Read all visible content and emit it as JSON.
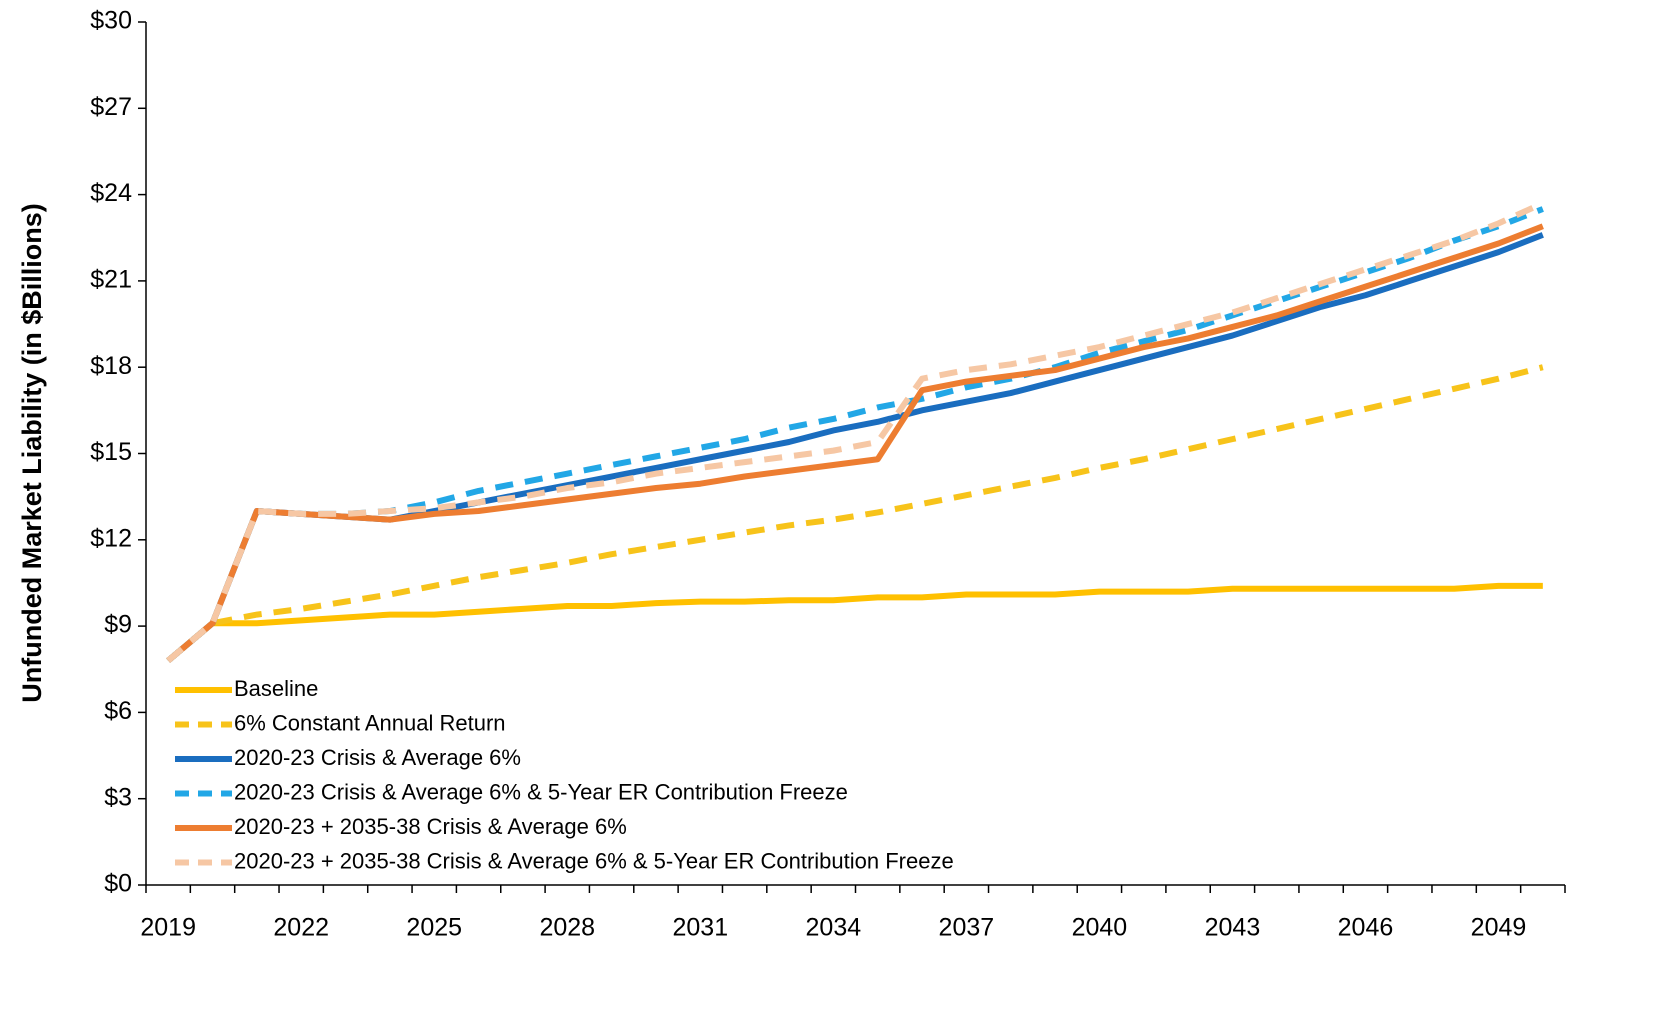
{
  "chart_data": {
    "type": "line",
    "y_label": "Unfunded Market Liability (in $Billions)",
    "x": [
      2019,
      2020,
      2021,
      2022,
      2023,
      2024,
      2025,
      2026,
      2027,
      2028,
      2029,
      2030,
      2031,
      2032,
      2033,
      2034,
      2035,
      2036,
      2037,
      2038,
      2039,
      2040,
      2041,
      2042,
      2043,
      2044,
      2045,
      2046,
      2047,
      2048,
      2049,
      2050
    ],
    "xlim": [
      2018.5,
      2050.5
    ],
    "xticks": [
      2019,
      2022,
      2025,
      2028,
      2031,
      2034,
      2037,
      2040,
      2043,
      2046,
      2049
    ],
    "ylim": [
      0,
      30
    ],
    "yticks": [
      {
        "value": 0,
        "label": "$0"
      },
      {
        "value": 3,
        "label": "$3"
      },
      {
        "value": 6,
        "label": "$6"
      },
      {
        "value": 9,
        "label": "$9"
      },
      {
        "value": 12,
        "label": "$12"
      },
      {
        "value": 15,
        "label": "$15"
      },
      {
        "value": 18,
        "label": "$18"
      },
      {
        "value": 21,
        "label": "$21"
      },
      {
        "value": 24,
        "label": "$24"
      },
      {
        "value": 27,
        "label": "$27"
      },
      {
        "value": 30,
        "label": "$30"
      }
    ],
    "series": [
      {
        "name": "Baseline",
        "color": "#ffc000",
        "dashed": false,
        "values": [
          7.8,
          9.1,
          9.1,
          9.2,
          9.3,
          9.4,
          9.4,
          9.5,
          9.6,
          9.7,
          9.7,
          9.8,
          9.85,
          9.85,
          9.9,
          9.9,
          10.0,
          10.0,
          10.1,
          10.1,
          10.1,
          10.2,
          10.2,
          10.2,
          10.3,
          10.3,
          10.3,
          10.3,
          10.3,
          10.3,
          10.4,
          10.4
        ]
      },
      {
        "name": "6% Constant Annual Return",
        "color": "#f7c31a",
        "dashed": true,
        "values": [
          7.8,
          9.1,
          9.4,
          9.6,
          9.85,
          10.1,
          10.4,
          10.7,
          10.95,
          11.2,
          11.5,
          11.75,
          12.0,
          12.25,
          12.5,
          12.7,
          12.95,
          13.25,
          13.55,
          13.85,
          14.15,
          14.5,
          14.8,
          15.15,
          15.5,
          15.85,
          16.2,
          16.55,
          16.9,
          17.25,
          17.6,
          18.0
        ]
      },
      {
        "name": "2020-23 Crisis & Average 6%",
        "color": "#1a6dbf",
        "dashed": false,
        "values": [
          7.8,
          9.1,
          13.0,
          12.9,
          12.8,
          12.7,
          13.0,
          13.3,
          13.6,
          13.9,
          14.2,
          14.5,
          14.8,
          15.1,
          15.4,
          15.8,
          16.1,
          16.5,
          16.8,
          17.1,
          17.5,
          17.9,
          18.3,
          18.7,
          19.1,
          19.6,
          20.1,
          20.5,
          21.0,
          21.5,
          22.0,
          22.6
        ]
      },
      {
        "name": "2020-23 Crisis & Average 6% & 5-Year ER Contribution Freeze",
        "color": "#22a7e6",
        "dashed": true,
        "values": [
          7.8,
          9.1,
          13.0,
          12.9,
          12.9,
          13.0,
          13.3,
          13.7,
          14.0,
          14.3,
          14.6,
          14.9,
          15.2,
          15.5,
          15.9,
          16.2,
          16.6,
          16.9,
          17.3,
          17.6,
          18.0,
          18.5,
          18.9,
          19.3,
          19.8,
          20.3,
          20.8,
          21.3,
          21.8,
          22.4,
          22.9,
          23.5
        ]
      },
      {
        "name": "2020-23 + 2035-38 Crisis & Average 6%",
        "color": "#ed7d31",
        "dashed": false,
        "values": [
          7.8,
          9.1,
          13.0,
          12.9,
          12.8,
          12.7,
          12.9,
          13.0,
          13.2,
          13.4,
          13.6,
          13.8,
          13.95,
          14.2,
          14.4,
          14.6,
          14.8,
          17.2,
          17.5,
          17.7,
          17.9,
          18.3,
          18.7,
          19.0,
          19.4,
          19.8,
          20.3,
          20.8,
          21.3,
          21.8,
          22.3,
          22.9
        ]
      },
      {
        "name": "2020-23 + 2035-38 Crisis & Average 6% & 5-Year ER Contribution Freeze",
        "color": "#f6c7a4",
        "dashed": true,
        "values": [
          7.8,
          9.1,
          13.0,
          12.9,
          12.9,
          13.0,
          13.1,
          13.3,
          13.5,
          13.8,
          14.0,
          14.3,
          14.5,
          14.7,
          14.9,
          15.1,
          15.4,
          17.6,
          17.9,
          18.1,
          18.4,
          18.7,
          19.1,
          19.5,
          19.9,
          20.4,
          20.9,
          21.4,
          21.9,
          22.4,
          23.0,
          23.7
        ]
      }
    ]
  }
}
